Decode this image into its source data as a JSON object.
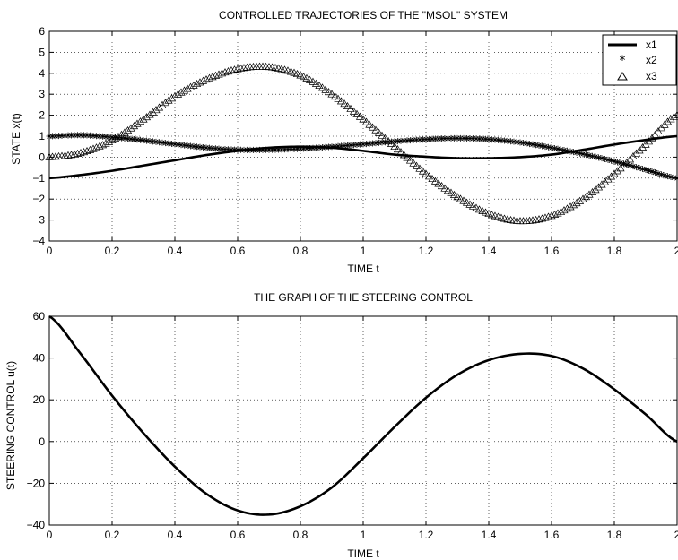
{
  "chart_data": [
    {
      "type": "line",
      "title": "CONTROLLED TRAJECTORIES OF THE \"MSOL\" SYSTEM",
      "xlabel": "TIME  t",
      "ylabel": "STATE  x(t)",
      "xlim": [
        0,
        2
      ],
      "ylim": [
        -4,
        6
      ],
      "xticks": [
        "0",
        "0.2",
        "0.4",
        "0.6",
        "0.8",
        "1",
        "1.2",
        "1.4",
        "1.6",
        "1.8",
        "2"
      ],
      "yticks": [
        "−4",
        "−3",
        "−2",
        "−1",
        "0",
        "1",
        "2",
        "3",
        "4",
        "5",
        "6"
      ],
      "grid": true,
      "legend_position": "top-right",
      "x": [
        0,
        0.1,
        0.2,
        0.3,
        0.4,
        0.5,
        0.6,
        0.7,
        0.8,
        0.9,
        1.0,
        1.1,
        1.2,
        1.3,
        1.4,
        1.5,
        1.6,
        1.7,
        1.8,
        1.9,
        2.0
      ],
      "series": [
        {
          "name": "x1",
          "marker": "line",
          "values": [
            -1,
            -0.85,
            -0.65,
            -0.4,
            -0.15,
            0.1,
            0.3,
            0.45,
            0.5,
            0.45,
            0.3,
            0.12,
            0.02,
            -0.05,
            -0.05,
            0,
            0.12,
            0.35,
            0.6,
            0.82,
            1.0
          ]
        },
        {
          "name": "x2",
          "marker": "star",
          "values": [
            1.0,
            1.05,
            0.95,
            0.8,
            0.62,
            0.45,
            0.35,
            0.35,
            0.4,
            0.5,
            0.62,
            0.75,
            0.85,
            0.9,
            0.85,
            0.7,
            0.45,
            0.15,
            -0.2,
            -0.6,
            -1.0
          ]
        },
        {
          "name": "x3",
          "marker": "triangle",
          "values": [
            0.0,
            0.2,
            0.8,
            1.8,
            2.9,
            3.7,
            4.2,
            4.3,
            3.9,
            3.0,
            1.8,
            0.5,
            -0.8,
            -1.9,
            -2.7,
            -3.05,
            -2.8,
            -2.0,
            -0.8,
            0.6,
            2.0
          ]
        }
      ]
    },
    {
      "type": "line",
      "title": "THE GRAPH OF THE STEERING CONTROL",
      "xlabel": "TIME  t",
      "ylabel": "STEERING CONTROL  u(t)",
      "xlim": [
        0,
        2
      ],
      "ylim": [
        -40,
        60
      ],
      "xticks": [
        "0",
        "0.2",
        "0.4",
        "0.6",
        "0.8",
        "1",
        "1.2",
        "1.4",
        "1.6",
        "1.8",
        "2"
      ],
      "yticks": [
        "−40",
        "−20",
        "0",
        "20",
        "40",
        "60"
      ],
      "grid": true,
      "x": [
        0,
        0.1,
        0.2,
        0.3,
        0.4,
        0.5,
        0.6,
        0.7,
        0.8,
        0.9,
        1.0,
        1.1,
        1.2,
        1.3,
        1.4,
        1.5,
        1.6,
        1.7,
        1.8,
        1.9,
        2.0
      ],
      "series": [
        {
          "values": [
            60,
            42,
            22,
            4,
            -12,
            -25,
            -33,
            -35,
            -31,
            -22,
            -8,
            7,
            21,
            32,
            39,
            42,
            41,
            35,
            25,
            13,
            0
          ]
        }
      ]
    }
  ]
}
